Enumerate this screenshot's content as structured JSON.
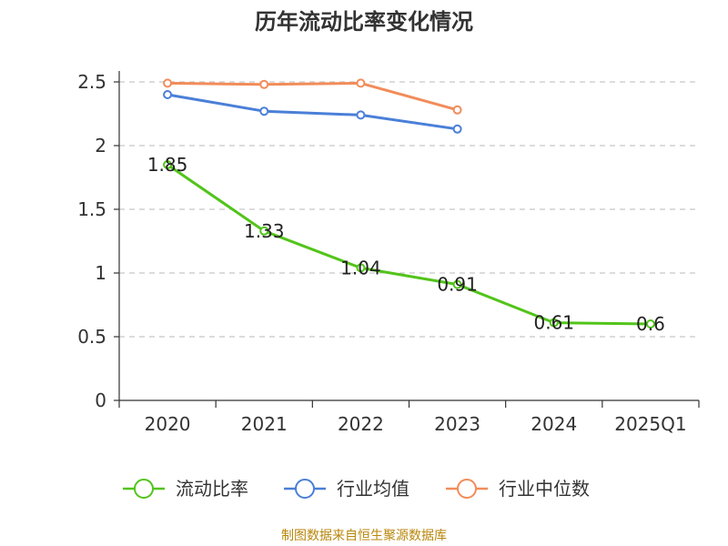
{
  "chart_data": {
    "type": "line",
    "title": "历年流动比率变化情况",
    "categories": [
      "2020",
      "2021",
      "2022",
      "2023",
      "2024",
      "2025Q1"
    ],
    "yticks": [
      "0",
      "0.5",
      "1",
      "1.5",
      "2",
      "2.5"
    ],
    "ylim": [
      0,
      2.5
    ],
    "xlabel": "",
    "ylabel": "",
    "grid": "horizontal dashed",
    "legend_position": "bottom",
    "series": [
      {
        "name": "流动比率",
        "color": "#52c41a",
        "values": [
          1.85,
          1.33,
          1.04,
          0.91,
          0.61,
          0.6
        ],
        "labels": [
          "1.85",
          "1.33",
          "1.04",
          "0.91",
          "0.61",
          "0.6"
        ],
        "show_labels": true
      },
      {
        "name": "行业均值",
        "color": "#4a7fd8",
        "values": [
          2.4,
          2.27,
          2.24,
          2.13,
          null,
          null
        ],
        "show_labels": false
      },
      {
        "name": "行业中位数",
        "color": "#f28c5a",
        "values": [
          2.49,
          2.48,
          2.49,
          2.28,
          null,
          null
        ],
        "show_labels": false
      }
    ]
  },
  "source": "制图数据来自恒生聚源数据库"
}
